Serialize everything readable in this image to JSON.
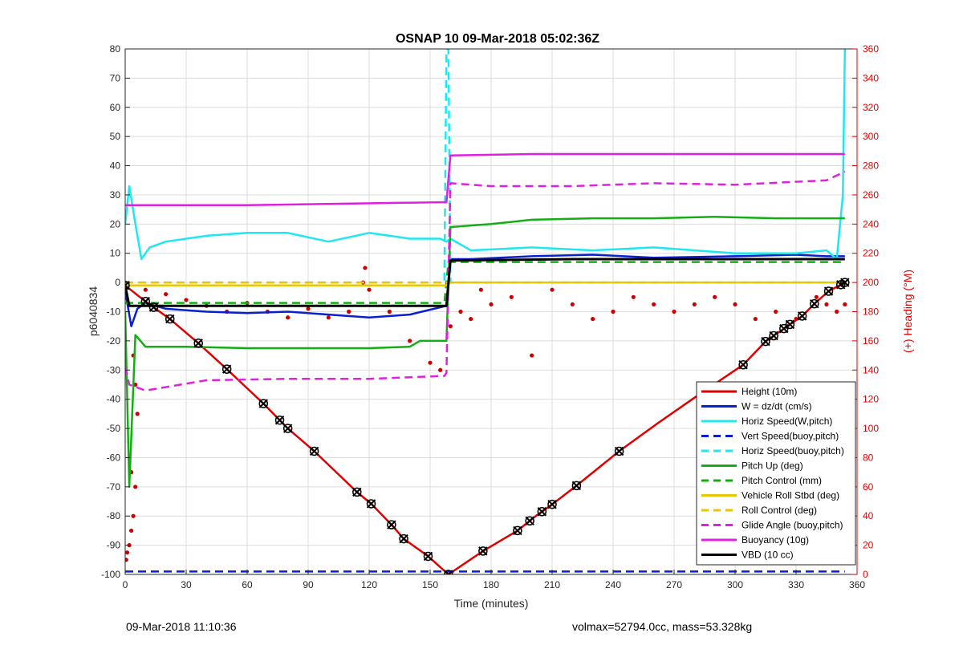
{
  "chart_data": {
    "type": "line",
    "title": "OSNAP 10 09-Mar-2018 05:02:36Z",
    "xlabel": "Time (minutes)",
    "ylabel_left": "p6040834",
    "ylabel_right": "(+) Heading (°M)",
    "xlim": [
      0,
      360
    ],
    "ylim_left": [
      -100,
      80
    ],
    "ylim_right": [
      0,
      360
    ],
    "x_ticks": [
      "0",
      "30",
      "60",
      "90",
      "120",
      "150",
      "180",
      "210",
      "240",
      "270",
      "300",
      "330",
      "360"
    ],
    "y_ticks_left": [
      "80",
      "70",
      "60",
      "50",
      "40",
      "30",
      "20",
      "10",
      "0",
      "-10",
      "-20",
      "-30",
      "-40",
      "-50",
      "-60",
      "-70",
      "-80",
      "-90",
      "-100"
    ],
    "y_ticks_right": [
      "360",
      "340",
      "320",
      "300",
      "280",
      "260",
      "240",
      "220",
      "200",
      "180",
      "160",
      "140",
      "120",
      "100",
      "80",
      "60",
      "40",
      "20",
      "0"
    ],
    "grid": true,
    "legend_position": "bottom-right",
    "colors": {
      "red": "#e00000",
      "blue": "#0a1fd0",
      "cyan": "#1ee8ee",
      "green": "#13ae13",
      "yellow": "#e8c600",
      "magenta": "#e020e0",
      "black": "#000000",
      "heading": "#cc0000"
    },
    "series": [
      {
        "name": "Height (10m)",
        "color": "red",
        "style": "solid",
        "x": [
          0,
          10,
          22,
          36,
          50,
          68,
          80,
          93,
          114,
          121,
          131,
          137,
          149,
          159,
          176,
          193,
          202,
          210,
          222,
          243,
          262,
          280,
          304,
          315,
          324,
          333,
          339,
          346,
          354
        ],
        "y": [
          -1,
          -6.5,
          -12.5,
          -20.8,
          -29.7,
          -41.5,
          -50,
          -57.8,
          -71.8,
          -75.8,
          -83,
          -87.8,
          -93.8,
          -100,
          -92,
          -85,
          -80,
          -76,
          -69.6,
          -57.8,
          -48.2,
          -39.5,
          -28.2,
          -20.2,
          -15.8,
          -11.5,
          -7.3,
          -3,
          0
        ]
      },
      {
        "name": "W = dz/dt (cm/s)",
        "color": "blue",
        "style": "solid",
        "x": [
          0,
          3,
          6,
          10,
          20,
          40,
          60,
          80,
          100,
          120,
          140,
          155,
          158,
          160,
          170,
          200,
          230,
          260,
          300,
          330,
          345,
          354
        ],
        "y": [
          -3,
          -15,
          -9,
          -7,
          -9,
          -10,
          -10.5,
          -10,
          -11,
          -12,
          -11,
          -8.5,
          -8,
          8,
          8,
          9,
          9.5,
          8.5,
          9,
          9.5,
          9,
          9
        ]
      },
      {
        "name": "Horiz Speed(W,pitch)",
        "color": "cyan",
        "style": "solid",
        "x": [
          0,
          2,
          5,
          8,
          12,
          20,
          40,
          60,
          80,
          100,
          120,
          140,
          155,
          158,
          160,
          170,
          200,
          230,
          260,
          300,
          330,
          345,
          350,
          353,
          354
        ],
        "y": [
          20,
          33,
          20,
          8,
          12,
          14,
          16,
          17,
          17,
          14,
          17,
          15,
          15,
          14,
          15,
          11,
          12,
          11,
          12,
          10,
          10,
          11,
          8,
          30,
          80
        ]
      },
      {
        "name": "Vert Speed(buoy,pitch)",
        "color": "blue",
        "style": "dashed",
        "x": [
          0,
          354
        ],
        "y": [
          -99,
          -99
        ]
      },
      {
        "name": "Horiz Speed(buoy,pitch)",
        "color": "cyan",
        "style": "dashed",
        "x": [
          0,
          157,
          158,
          159,
          160,
          354
        ],
        "y": [
          0,
          0,
          80,
          80,
          0,
          0
        ]
      },
      {
        "name": "Pitch Up (deg)",
        "color": "green",
        "style": "solid",
        "x": [
          0,
          2,
          5,
          10,
          30,
          60,
          90,
          120,
          140,
          145,
          155,
          158,
          160,
          180,
          200,
          230,
          260,
          290,
          320,
          345,
          354
        ],
        "y": [
          -10,
          -70,
          -18,
          -22,
          -22,
          -22.5,
          -22.5,
          -22.5,
          -22,
          -20,
          -20,
          -20,
          19,
          20,
          21.5,
          22,
          22,
          22.5,
          22,
          22,
          22
        ]
      },
      {
        "name": "Pitch Control (mm)",
        "color": "green",
        "style": "dashed",
        "x": [
          0,
          157,
          159,
          354
        ],
        "y": [
          -7,
          -7,
          7,
          7
        ]
      },
      {
        "name": "Vehicle Roll Stbd (deg)",
        "color": "yellow",
        "style": "solid",
        "x": [
          0,
          158,
          160,
          354
        ],
        "y": [
          -1,
          -1,
          0,
          0
        ]
      },
      {
        "name": "Roll Control (deg)",
        "color": "yellow",
        "style": "dashed",
        "x": [
          0,
          158,
          160,
          354
        ],
        "y": [
          0,
          0,
          0,
          0
        ]
      },
      {
        "name": "Glide Angle (buoy,pitch)",
        "color": "magenta",
        "style": "dashed",
        "x": [
          0,
          2,
          10,
          40,
          80,
          120,
          157,
          158,
          160,
          180,
          220,
          260,
          300,
          345,
          354
        ],
        "y": [
          -29,
          -35,
          -37,
          -33.5,
          -33,
          -33,
          -32,
          -31,
          34,
          33,
          33,
          34,
          33.5,
          35,
          38
        ]
      },
      {
        "name": "Buoyancy (10g)",
        "color": "magenta",
        "style": "solid",
        "x": [
          0,
          2,
          60,
          157,
          158,
          160,
          200,
          260,
          300,
          354
        ],
        "y": [
          26.5,
          26.5,
          26.5,
          27.5,
          27.5,
          43.5,
          44,
          44,
          44,
          44
        ]
      },
      {
        "name": "VBD (10 cc)",
        "color": "black",
        "style": "solid",
        "x": [
          0,
          2,
          157,
          158,
          160,
          220,
          300,
          354
        ],
        "y": [
          -1,
          -8,
          -8,
          -8,
          7.5,
          8,
          8,
          8
        ]
      }
    ],
    "heading_dots": {
      "axis": "right",
      "x": [
        0.5,
        1,
        2,
        3,
        4,
        5,
        6,
        5,
        4,
        3,
        10,
        20,
        30,
        40,
        50,
        60,
        70,
        80,
        90,
        100,
        110,
        117,
        118,
        120,
        130,
        140,
        150,
        155,
        160,
        165,
        170,
        175,
        180,
        190,
        200,
        210,
        220,
        230,
        240,
        250,
        260,
        270,
        280,
        290,
        300,
        310,
        320,
        330,
        340,
        345,
        350,
        354
      ],
      "y": [
        10,
        15,
        20,
        30,
        40,
        60,
        110,
        130,
        150,
        70,
        195,
        192,
        188,
        184,
        180,
        186,
        180,
        176,
        182,
        176,
        180,
        200,
        210,
        195,
        180,
        160,
        145,
        140,
        170,
        180,
        175,
        195,
        185,
        190,
        150,
        195,
        185,
        175,
        180,
        190,
        185,
        180,
        185,
        190,
        185,
        175,
        180,
        175,
        190,
        185,
        180,
        185
      ]
    },
    "vbd_markers": {
      "x": [
        0,
        10,
        14,
        22,
        36,
        50,
        68,
        76,
        80,
        93,
        114,
        121,
        131,
        137,
        149,
        159,
        176,
        193,
        199,
        205,
        210,
        222,
        243,
        304,
        315,
        319,
        324,
        327,
        333,
        339,
        346,
        352,
        354
      ]
    }
  },
  "footer": {
    "date": "09-Mar-2018 11:10:36",
    "stats": "volmax=52794.0cc, mass=53.328kg"
  }
}
